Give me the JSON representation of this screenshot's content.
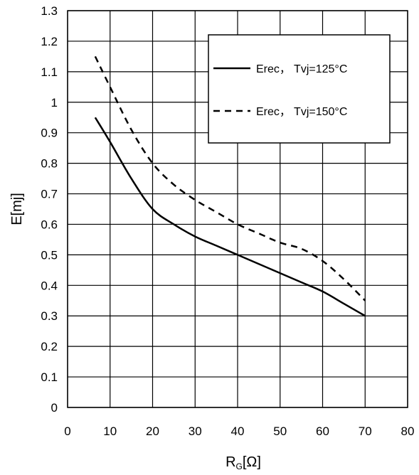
{
  "chart_data": {
    "type": "line",
    "xlabel": "RG[Ω]",
    "xlabel_main": "R",
    "xlabel_sub": "G",
    "xlabel_unit": "[Ω]",
    "ylabel": "E[mj]",
    "xlim": [
      0,
      80
    ],
    "ylim": [
      0,
      1.3
    ],
    "xticks": [
      "0",
      "10",
      "20",
      "30",
      "40",
      "50",
      "60",
      "70",
      "80"
    ],
    "yticks": [
      "0",
      "0.1",
      "0.2",
      "0.3",
      "0.4",
      "0.5",
      "0.6",
      "0.7",
      "0.8",
      "0.9",
      "1",
      "1.1",
      "1.2",
      "1.3"
    ],
    "grid": true,
    "legend_position": "top-right",
    "series": [
      {
        "name": "Erec， Tvj=125°C",
        "style": "solid",
        "color": "#000000",
        "x": [
          6.5,
          10,
          15,
          20,
          25,
          30,
          35,
          40,
          45,
          50,
          55,
          60,
          65,
          70
        ],
        "y": [
          0.95,
          0.87,
          0.75,
          0.65,
          0.6,
          0.56,
          0.53,
          0.5,
          0.47,
          0.44,
          0.41,
          0.38,
          0.34,
          0.3
        ]
      },
      {
        "name": "Erec， Tvj=150°C",
        "style": "dashed",
        "color": "#000000",
        "x": [
          6.5,
          10,
          15,
          20,
          25,
          30,
          35,
          40,
          45,
          50,
          55,
          60,
          65,
          70
        ],
        "y": [
          1.15,
          1.05,
          0.91,
          0.8,
          0.73,
          0.68,
          0.64,
          0.6,
          0.57,
          0.54,
          0.52,
          0.48,
          0.42,
          0.35
        ]
      }
    ]
  }
}
